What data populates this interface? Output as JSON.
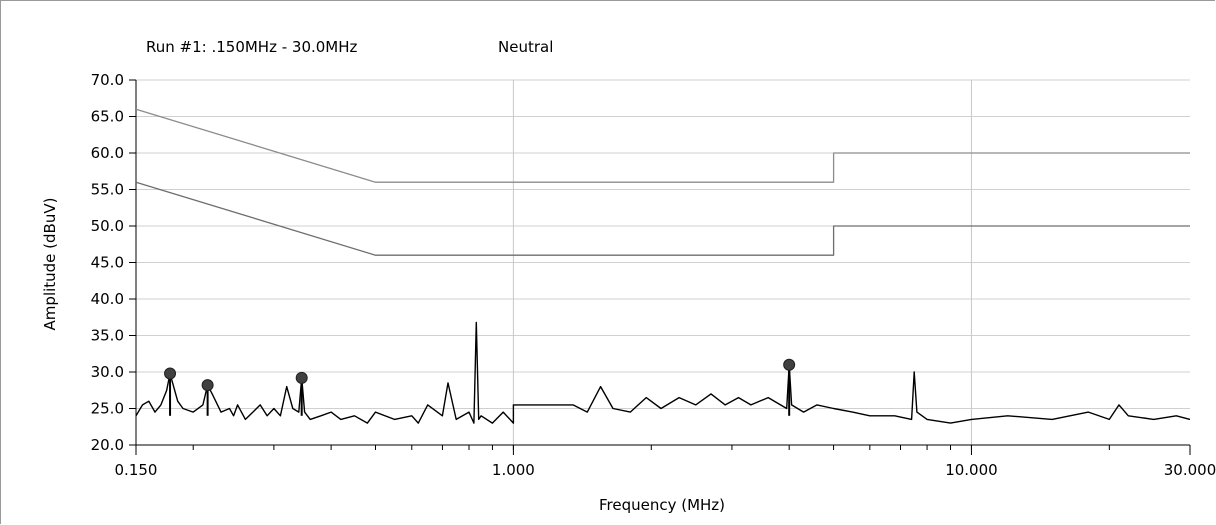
{
  "chart_data": {
    "type": "line",
    "title": "Run #1:   .150MHz - 30.0MHz",
    "subtitle": "Neutral",
    "xlabel": "Frequency (MHz)",
    "ylabel": "Amplitude (dBuV)",
    "x_scale": "log",
    "xlim": [
      0.15,
      30.0
    ],
    "ylim": [
      20.0,
      70.0
    ],
    "grid": true,
    "y_ticks": [
      "70.0",
      "65.0",
      "60.0",
      "55.0",
      "50.0",
      "45.0",
      "40.0",
      "35.0",
      "30.0",
      "25.0",
      "20.0"
    ],
    "y_tick_values": [
      70,
      65,
      60,
      55,
      50,
      45,
      40,
      35,
      30,
      25,
      20
    ],
    "x_ticks": [
      "0.150",
      "1.000",
      "10.000",
      "30.000"
    ],
    "x_tick_values": [
      0.15,
      1.0,
      10.0,
      30.0
    ],
    "series": [
      {
        "color": "#8c8c8c",
        "x": [
          0.15,
          0.5,
          5.0,
          5.0,
          30.0
        ],
        "y": [
          66.0,
          56.0,
          56.0,
          60.0,
          60.0
        ]
      },
      {
        "color": "#6e6e6e",
        "x": [
          0.15,
          0.5,
          5.0,
          5.0,
          30.0
        ],
        "y": [
          56.0,
          46.0,
          46.0,
          50.0,
          50.0
        ]
      },
      {
        "color": "#000000",
        "x": [
          0.15,
          0.155,
          0.16,
          0.165,
          0.17,
          0.175,
          0.178,
          0.185,
          0.19,
          0.2,
          0.21,
          0.215,
          0.22,
          0.23,
          0.24,
          0.245,
          0.25,
          0.26,
          0.27,
          0.28,
          0.29,
          0.3,
          0.31,
          0.32,
          0.33,
          0.34,
          0.345,
          0.35,
          0.36,
          0.38,
          0.4,
          0.42,
          0.45,
          0.48,
          0.5,
          0.55,
          0.6,
          0.62,
          0.65,
          0.7,
          0.72,
          0.75,
          0.8,
          0.82,
          0.83,
          0.84,
          0.85,
          0.9,
          0.95,
          1.0,
          1.0,
          1.2,
          1.35,
          1.45,
          1.55,
          1.65,
          1.8,
          1.95,
          2.1,
          2.3,
          2.5,
          2.7,
          2.9,
          3.1,
          3.3,
          3.6,
          3.95,
          4.0,
          4.05,
          4.3,
          4.6,
          5.0,
          5.5,
          6.0,
          6.8,
          7.4,
          7.5,
          7.6,
          8.0,
          9.0,
          10.0,
          12.0,
          15.0,
          18.0,
          20.0,
          21.0,
          22.0,
          25.0,
          28.0,
          30.0
        ],
        "y": [
          24.0,
          25.5,
          26.0,
          24.5,
          25.5,
          27.5,
          29.8,
          26.0,
          25.0,
          24.5,
          25.5,
          28.2,
          27.0,
          24.5,
          25.0,
          24.0,
          25.5,
          23.5,
          24.5,
          25.5,
          24.0,
          25.0,
          24.0,
          28.0,
          25.0,
          24.5,
          29.2,
          24.5,
          23.5,
          24.0,
          24.5,
          23.5,
          24.0,
          23.0,
          24.5,
          23.5,
          24.0,
          23.0,
          25.5,
          24.0,
          28.5,
          23.5,
          24.5,
          23.0,
          36.8,
          23.5,
          24.0,
          23.0,
          24.5,
          23.0,
          25.5,
          25.5,
          25.5,
          24.5,
          28.0,
          25.0,
          24.5,
          26.5,
          25.0,
          26.5,
          25.5,
          27.0,
          25.5,
          26.5,
          25.5,
          26.5,
          25.0,
          31.0,
          25.5,
          24.5,
          25.5,
          25.0,
          24.5,
          24.0,
          24.0,
          23.5,
          30.0,
          24.5,
          23.5,
          23.0,
          23.5,
          24.0,
          23.5,
          24.5,
          23.5,
          25.5,
          24.0,
          23.5,
          24.0,
          23.5
        ]
      }
    ],
    "markers": [
      {
        "x": 0.178,
        "y": 29.8
      },
      {
        "x": 0.215,
        "y": 28.2
      },
      {
        "x": 0.345,
        "y": 29.2
      },
      {
        "x": 4.0,
        "y": 31.0
      }
    ]
  }
}
